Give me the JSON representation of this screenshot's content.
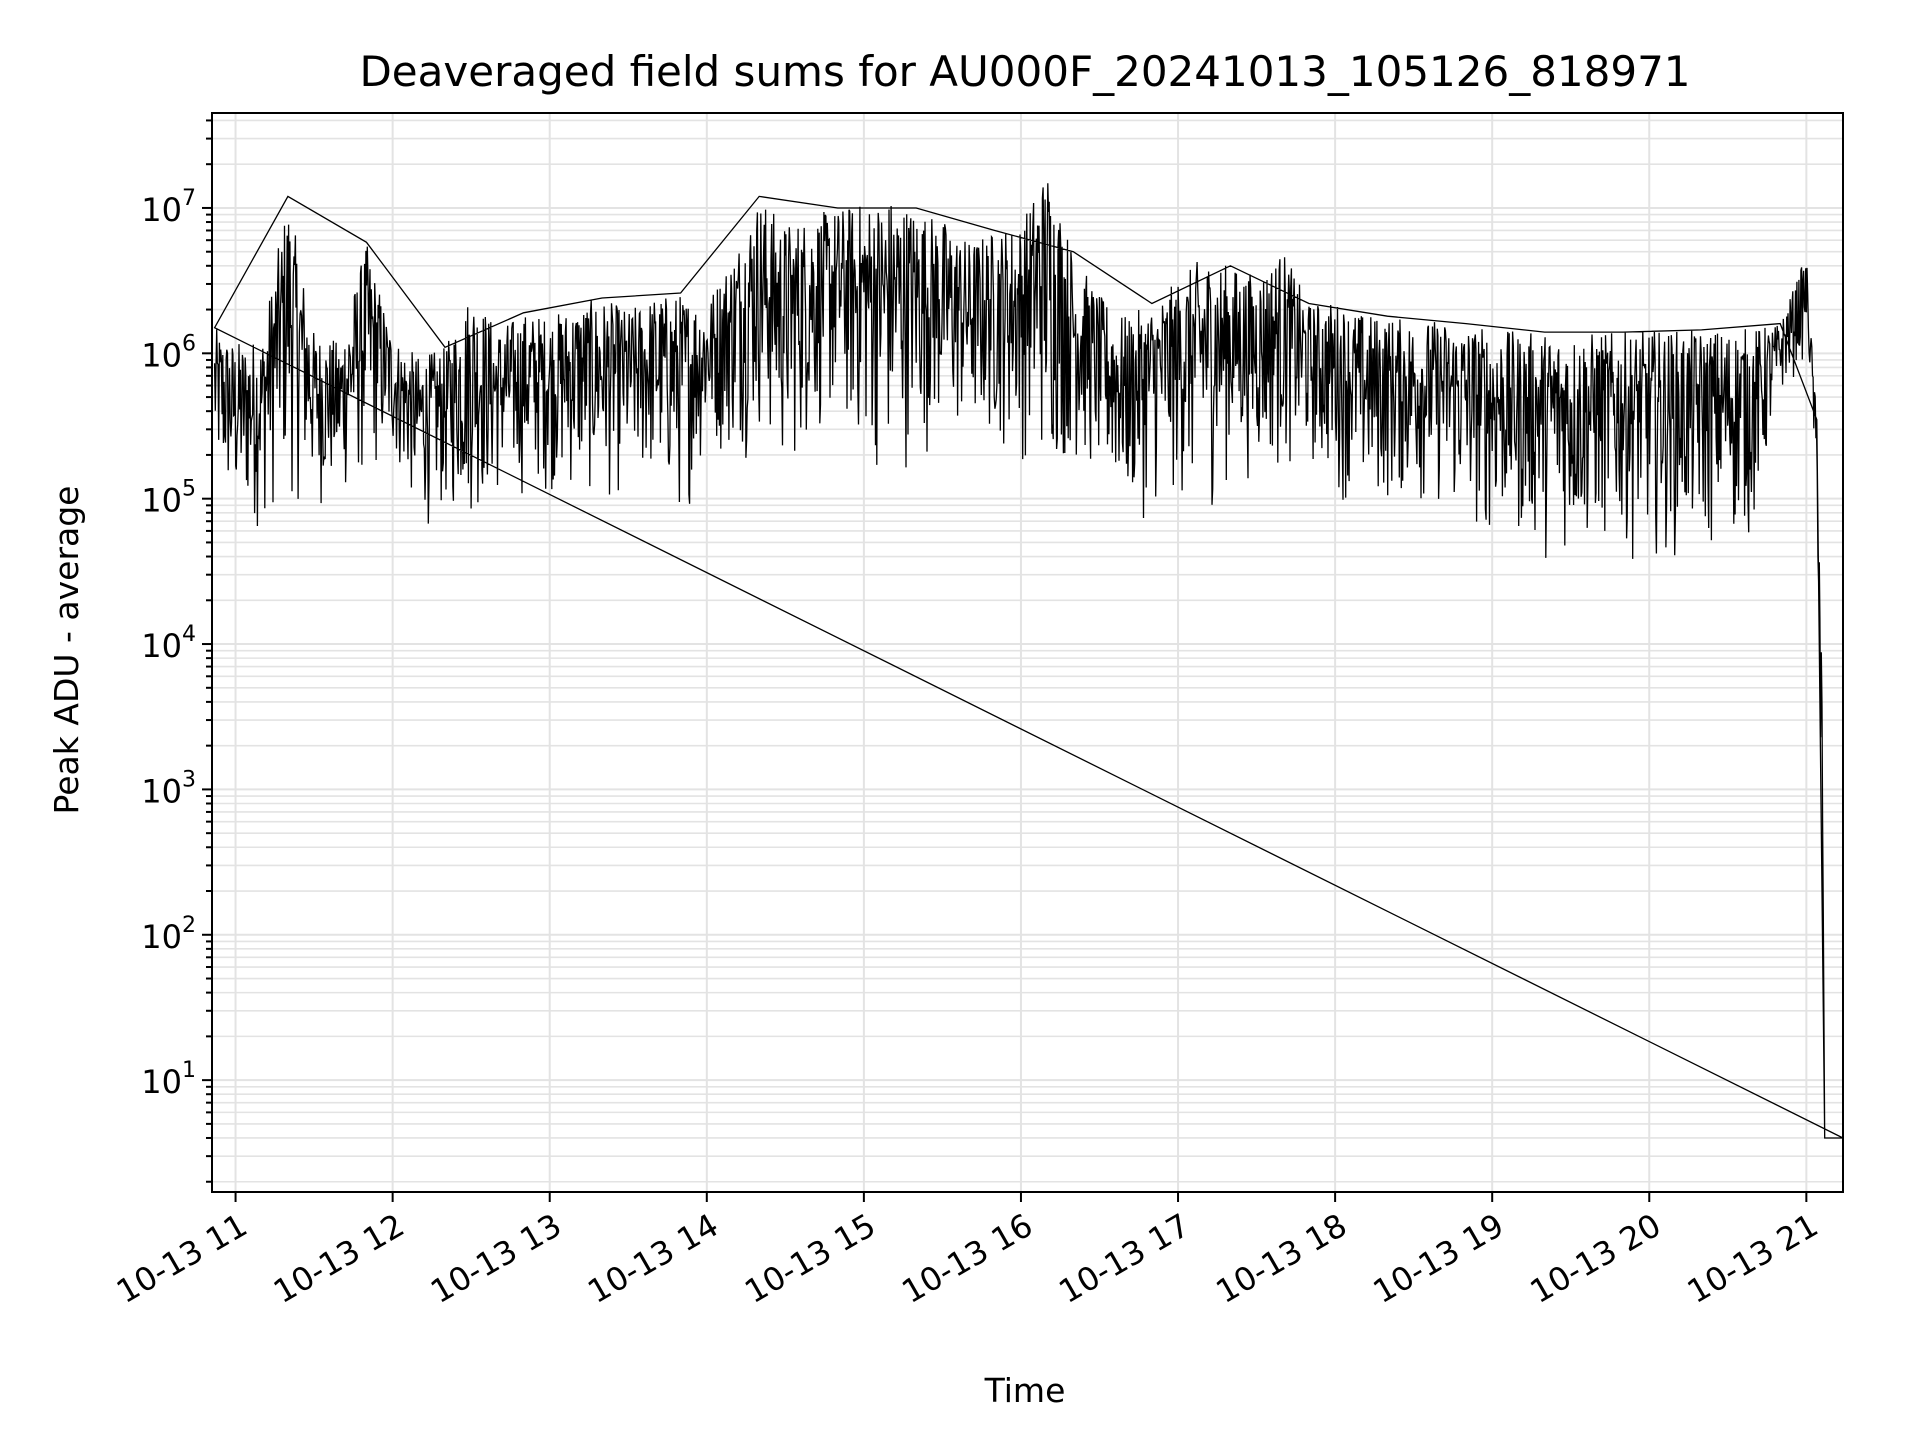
{
  "chart_data": {
    "type": "line",
    "title": "Deaveraged field sums for AU000F_20241013_105126_818971",
    "xlabel": "Time",
    "ylabel": "Peak ADU - average",
    "yscale": "log",
    "ylim": [
      1.7,
      45000000
    ],
    "xlim": [
      "2024-10-13 10:51",
      "2024-10-13 21:14"
    ],
    "grid": "on (major and minor)",
    "line_color": "#000000",
    "x_ticks": [
      "10-13 11",
      "10-13 12",
      "10-13 13",
      "10-13 14",
      "10-13 15",
      "10-13 16",
      "10-13 17",
      "10-13 18",
      "10-13 19",
      "10-13 20",
      "10-13 21"
    ],
    "y_ticks": [
      {
        "base": "10",
        "exp": "1",
        "value": 10
      },
      {
        "base": "10",
        "exp": "2",
        "value": 100
      },
      {
        "base": "10",
        "exp": "3",
        "value": 1000
      },
      {
        "base": "10",
        "exp": "4",
        "value": 10000
      },
      {
        "base": "10",
        "exp": "5",
        "value": 100000
      },
      {
        "base": "10",
        "exp": "6",
        "value": 1000000
      },
      {
        "base": "10",
        "exp": "7",
        "value": 10000000
      }
    ],
    "series": [
      {
        "x": [
          "2024-10-13 10:52",
          "2024-10-13 11:00",
          "2024-10-13 11:10",
          "2024-10-13 11:20",
          "2024-10-13 11:30",
          "2024-10-13 11:40",
          "2024-10-13 11:50",
          "2024-10-13 12:00",
          "2024-10-13 12:10",
          "2024-10-13 12:20",
          "2024-10-13 12:30",
          "2024-10-13 12:40",
          "2024-10-13 12:50",
          "2024-10-13 13:00",
          "2024-10-13 13:10",
          "2024-10-13 13:20",
          "2024-10-13 13:30",
          "2024-10-13 13:40",
          "2024-10-13 13:50",
          "2024-10-13 14:00",
          "2024-10-13 14:10",
          "2024-10-13 14:20",
          "2024-10-13 14:30",
          "2024-10-13 14:40",
          "2024-10-13 14:50",
          "2024-10-13 15:00",
          "2024-10-13 15:10",
          "2024-10-13 15:20",
          "2024-10-13 15:30",
          "2024-10-13 15:40",
          "2024-10-13 15:50",
          "2024-10-13 16:00",
          "2024-10-13 16:10",
          "2024-10-13 16:20",
          "2024-10-13 16:30",
          "2024-10-13 16:40",
          "2024-10-13 16:50",
          "2024-10-13 17:00",
          "2024-10-13 17:10",
          "2024-10-13 17:20",
          "2024-10-13 17:30",
          "2024-10-13 17:40",
          "2024-10-13 17:50",
          "2024-10-13 18:00",
          "2024-10-13 18:10",
          "2024-10-13 18:20",
          "2024-10-13 18:30",
          "2024-10-13 18:40",
          "2024-10-13 18:50",
          "2024-10-13 19:00",
          "2024-10-13 19:10",
          "2024-10-13 19:20",
          "2024-10-13 19:30",
          "2024-10-13 19:40",
          "2024-10-13 19:50",
          "2024-10-13 20:00",
          "2024-10-13 20:10",
          "2024-10-13 20:20",
          "2024-10-13 20:30",
          "2024-10-13 20:40",
          "2024-10-13 20:50",
          "2024-10-13 21:00",
          "2024-10-13 21:02",
          "2024-10-13 21:04",
          "2024-10-13 21:05",
          "2024-10-13 21:06",
          "2024-10-13 21:07",
          "2024-10-13 21:14"
        ],
        "high": [
          1500000,
          1200000,
          1300000,
          12000000,
          1400000,
          1200000,
          5800000,
          1300000,
          950000,
          1100000,
          2800000,
          1500000,
          1900000,
          1800000,
          2200000,
          2400000,
          2000000,
          2500000,
          2600000,
          2300000,
          5000000,
          12000000,
          8000000,
          9000000,
          10000000,
          11000000,
          12000000,
          10000000,
          8500000,
          6000000,
          7000000,
          8000000,
          20000000,
          5000000,
          2500000,
          1800000,
          2200000,
          3200000,
          4800000,
          4000000,
          3500000,
          5200000,
          2200000,
          2300000,
          1900000,
          1800000,
          1700000,
          1700000,
          1600000,
          1500000,
          1400000,
          1400000,
          1400000,
          1400000,
          1400000,
          1450000,
          1450000,
          1450000,
          1500000,
          1500000,
          1600000,
          4800000,
          1200000,
          350000,
          50000,
          10000,
          4,
          4
        ],
        "low": [
          100000,
          50000,
          55000,
          80000,
          75000,
          80000,
          100000,
          160000,
          55000,
          65000,
          60000,
          80000,
          90000,
          100000,
          85000,
          80000,
          90000,
          100000,
          55000,
          180000,
          160000,
          200000,
          100000,
          220000,
          240000,
          150000,
          100000,
          180000,
          180000,
          190000,
          200000,
          160000,
          110000,
          150000,
          100000,
          60000,
          70000,
          80000,
          60000,
          120000,
          120000,
          130000,
          140000,
          100000,
          70000,
          75000,
          80000,
          70000,
          50000,
          45000,
          40000,
          35000,
          33000,
          36000,
          38000,
          36000,
          35000,
          35000,
          38000,
          45000,
          450000,
          900000,
          500000,
          50000,
          10000,
          4,
          4,
          4
        ]
      }
    ]
  }
}
